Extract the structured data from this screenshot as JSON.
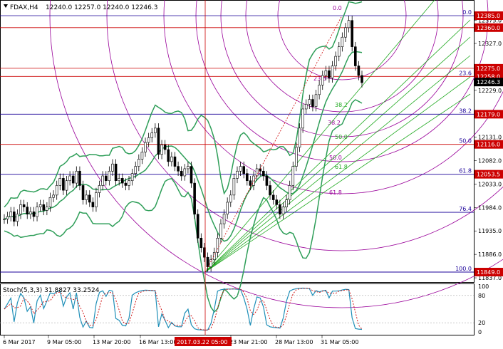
{
  "window": {
    "symbol": "FDAX,H4",
    "ohlc": "12240.0 12257.0 12240.0 12246.3"
  },
  "colors": {
    "background": "#ffffff",
    "candle": "#000000",
    "bollinger": "#2e9e58",
    "hline": "#cc0000",
    "fib_line": "#1a0099",
    "fan": "#22aa22",
    "arc": "#990099",
    "stoch_main": "#1f8fb8",
    "stoch_signal": "#cc0000",
    "price_tag_red": "#cc0000",
    "price_tag_navy": "#1a1a66",
    "current_tag": "#000000"
  },
  "fib_levels": [
    {
      "label": "0.0",
      "price": 12385.0,
      "tag_style": "red"
    },
    {
      "label": "23.6",
      "price": 12258.0,
      "tag_style": "red"
    },
    {
      "label": "38.2",
      "price": 12179.0,
      "tag_style": "red"
    },
    {
      "label": "50.0",
      "price": 12116.0,
      "tag_style": "red"
    },
    {
      "label": "61.8",
      "price": 12053.5,
      "tag_style": "red"
    },
    {
      "label": "76.4",
      "price": 11974.0,
      "tag_style": "none"
    },
    {
      "label": "100.0",
      "price": 11849.0,
      "tag_style": "red"
    }
  ],
  "extra_lines": [
    {
      "price": 12360.0,
      "label": "12360.0"
    },
    {
      "price": 12275.0,
      "label": "12275.0"
    }
  ],
  "current_price": "12246.3",
  "price_tags": {
    "p12385": "12385.0",
    "p12360": "12360.0",
    "p12275": "12275.0",
    "p12258": "12258.0",
    "p12246": "12246.3",
    "p12179": "12179.0",
    "p12116": "12116.0",
    "p12053": "12053.5",
    "p11849": "11849.0"
  },
  "price_axis_ticks": [
    "12375.0",
    "12327.0",
    "12229.0",
    "12131.0",
    "12082.0",
    "12033.0",
    "11984.0",
    "11935.0",
    "11886.0",
    "11837.0"
  ],
  "fan_labels": [
    "38.2",
    "50.0",
    "61.8"
  ],
  "arc_labels": [
    "23.6",
    "38.2",
    "50.0",
    "61.8"
  ],
  "top_fib_label": "0.0",
  "stoch": {
    "title": "Stoch(5,3,3) 31.8827 33.2524",
    "axis_ticks": [
      "100",
      "80",
      "20",
      "0"
    ]
  },
  "time_axis": [
    "6 Mar 2017",
    "9 Mar 05:00",
    "13 Mar 20:00",
    "16 Mar 13:00",
    "23 Mar 21:00",
    "28 Mar 13:00",
    "31 Mar 05:00"
  ],
  "cursor_time": "2017.03.22 05:00",
  "chart_data": {
    "type": "candlestick",
    "title": "FDAX,H4",
    "ylim": [
      11837,
      12400
    ],
    "x_start": "6 Mar 2017",
    "x_end": "3 Apr 2017",
    "closes": [
      11960,
      11965,
      11975,
      11955,
      11970,
      11990,
      11985,
      11970,
      11975,
      11965,
      11985,
      11990,
      11978,
      11985,
      12005,
      12010,
      12030,
      12045,
      12020,
      12040,
      12050,
      12035,
      12060,
      12030,
      12000,
      12010,
      11995,
      11985,
      12015,
      12030,
      12050,
      12040,
      12060,
      12075,
      12040,
      12045,
      12035,
      12030,
      12040,
      12055,
      12070,
      12085,
      12100,
      12120,
      12130,
      12140,
      12150,
      12095,
      12115,
      12105,
      12080,
      12090,
      12070,
      12060,
      12050,
      12065,
      12070,
      12035,
      11970,
      11920,
      11900,
      11880,
      11860,
      11875,
      11890,
      11920,
      11950,
      11970,
      11995,
      12010,
      12045,
      12060,
      12070,
      12055,
      12040,
      12030,
      12050,
      12065,
      12060,
      12050,
      12030,
      12010,
      12000,
      11990,
      11970,
      11985,
      12000,
      12030,
      12070,
      12110,
      12150,
      12190,
      12200,
      12210,
      12195,
      12220,
      12240,
      12260,
      12270,
      12255,
      12280,
      12300,
      12320,
      12340,
      12360,
      12375,
      12320,
      12280,
      12260,
      12245
    ]
  }
}
